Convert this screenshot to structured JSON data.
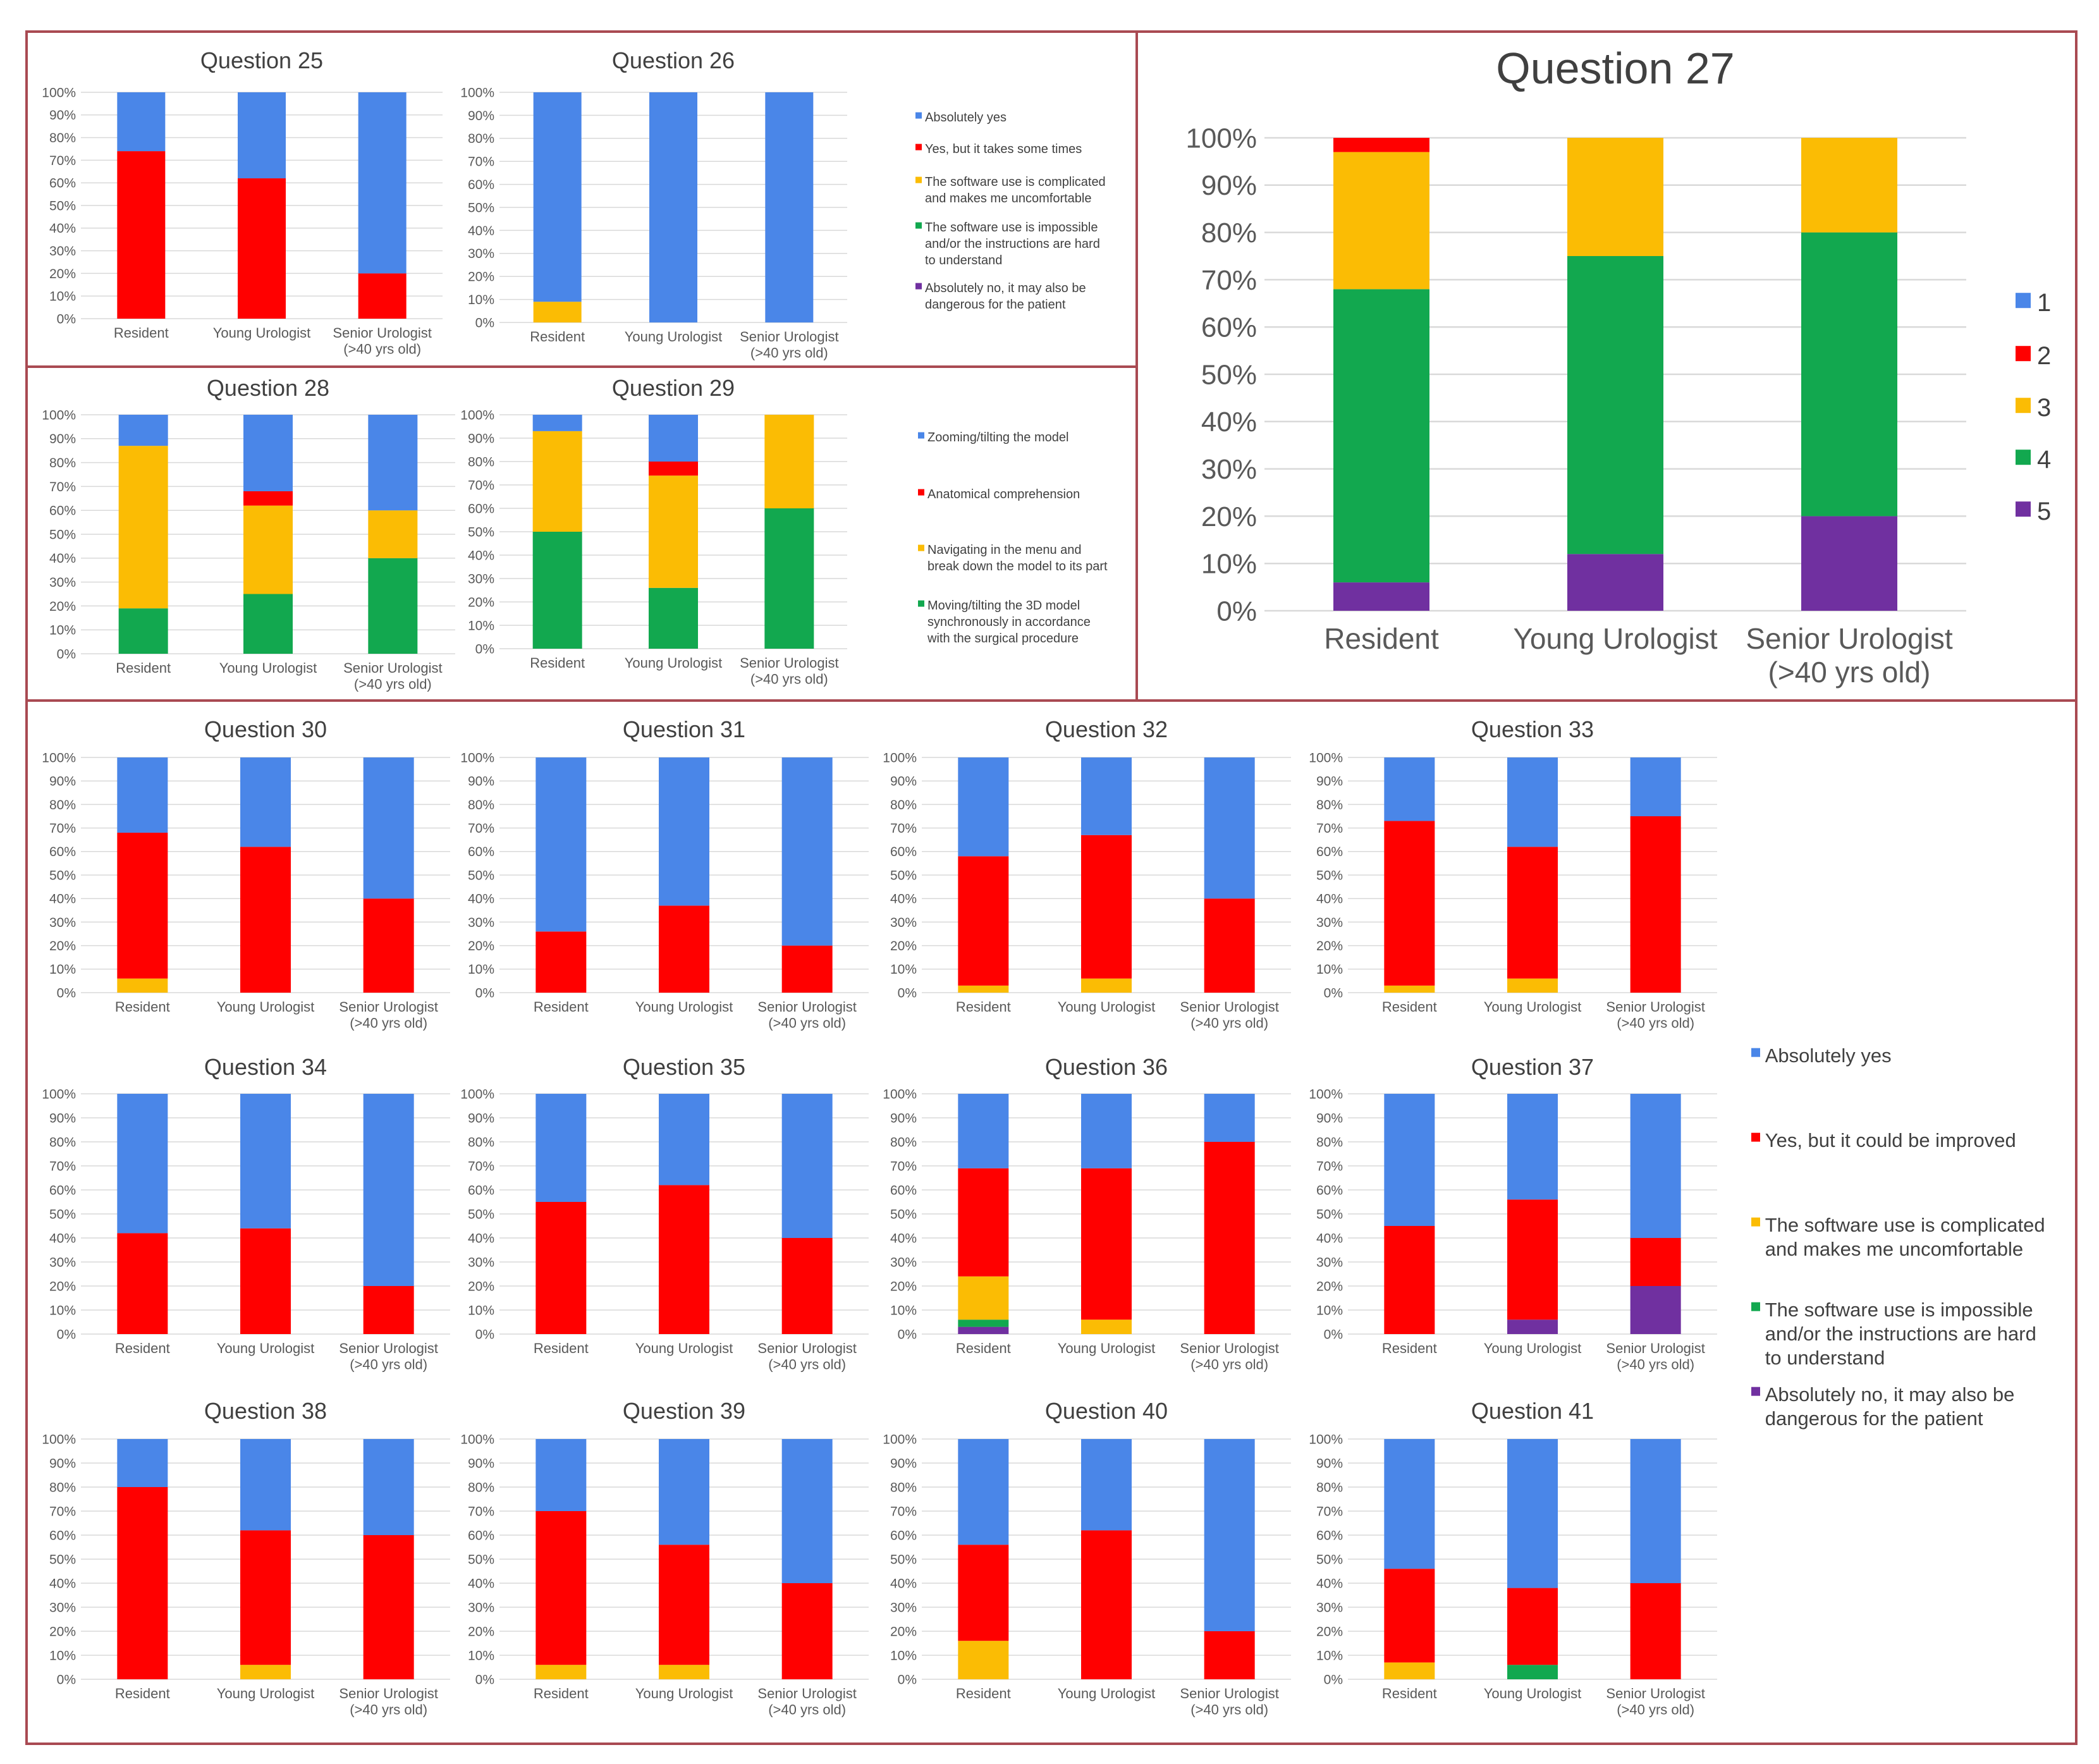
{
  "colors": {
    "c1": "#4a86e8",
    "c2": "#ff0000",
    "c3": "#fbbc04",
    "c4": "#12a84f",
    "c5": "#7030a0",
    "frame": "#a94a52",
    "grid": "#d9d9d9",
    "axis_text": "#595959"
  },
  "y_ticks": [
    "0%",
    "10%",
    "20%",
    "30%",
    "40%",
    "50%",
    "60%",
    "70%",
    "80%",
    "90%",
    "100%"
  ],
  "categories": [
    "Resident",
    "Young Urologist",
    "Senior Urologist"
  ],
  "category_sub": "(>40 yrs old)",
  "legends": {
    "q25_26": [
      {
        "color": "c1",
        "lines": [
          "Absolutely yes"
        ]
      },
      {
        "color": "c2",
        "lines": [
          "Yes, but it takes some times"
        ]
      },
      {
        "color": "c3",
        "lines": [
          "The software use is complicated",
          "and makes me uncomfortable"
        ]
      },
      {
        "color": "c4",
        "lines": [
          "The software use is impossible",
          "and/or the instructions are hard",
          "to understand"
        ]
      },
      {
        "color": "c5",
        "lines": [
          "Absolutely no, it may also be",
          "dangerous for the patient"
        ]
      }
    ],
    "q28_29": [
      {
        "color": "c1",
        "lines": [
          "Zooming/tilting the model"
        ]
      },
      {
        "color": "c2",
        "lines": [
          "Anatomical comprehension"
        ]
      },
      {
        "color": "c3",
        "lines": [
          "Navigating in the menu and",
          "break down the model to its part"
        ]
      },
      {
        "color": "c4",
        "lines": [
          "Moving/tilting the 3D model",
          "synchronously in accordance",
          "with the surgical procedure"
        ]
      }
    ],
    "q27": [
      {
        "color": "c1",
        "lines": [
          "1"
        ]
      },
      {
        "color": "c2",
        "lines": [
          "2"
        ]
      },
      {
        "color": "c3",
        "lines": [
          "3"
        ]
      },
      {
        "color": "c4",
        "lines": [
          "4"
        ]
      },
      {
        "color": "c5",
        "lines": [
          "5"
        ]
      }
    ],
    "q30_41": [
      {
        "color": "c1",
        "lines": [
          "Absolutely yes"
        ]
      },
      {
        "color": "c2",
        "lines": [
          "Yes, but it could be improved"
        ]
      },
      {
        "color": "c3",
        "lines": [
          "The software use is complicated",
          "and makes me uncomfortable"
        ]
      },
      {
        "color": "c4",
        "lines": [
          "The software use is impossible",
          "and/or the instructions are hard",
          "to understand"
        ]
      },
      {
        "color": "c5",
        "lines": [
          "Absolutely no, it may also be",
          "dangerous for the patient"
        ]
      }
    ]
  },
  "chart_data": [
    {
      "type": "bar",
      "stacked": true,
      "title": "Question 25",
      "ylim": [
        0,
        100
      ],
      "series_order": [
        "c5",
        "c4",
        "c3",
        "c2",
        "c1"
      ],
      "bars": [
        {
          "category": "Resident",
          "values": {
            "c2": 74,
            "c1": 26
          }
        },
        {
          "category": "Young Urologist",
          "values": {
            "c2": 62,
            "c1": 38
          }
        },
        {
          "category": "Senior Urologist (>40 yrs old)",
          "values": {
            "c2": 20,
            "c1": 80
          }
        }
      ]
    },
    {
      "type": "bar",
      "stacked": true,
      "title": "Question 26",
      "ylim": [
        0,
        100
      ],
      "series_order": [
        "c5",
        "c4",
        "c3",
        "c2",
        "c1"
      ],
      "bars": [
        {
          "category": "Resident",
          "values": {
            "c3": 9,
            "c1": 91
          }
        },
        {
          "category": "Young Urologist",
          "values": {
            "c1": 100
          }
        },
        {
          "category": "Senior Urologist (>40 yrs old)",
          "values": {
            "c1": 100
          }
        }
      ]
    },
    {
      "type": "bar",
      "stacked": true,
      "title": "Question 27",
      "ylim": [
        0,
        100
      ],
      "series_order": [
        "c5",
        "c4",
        "c3",
        "c2",
        "c1"
      ],
      "bars": [
        {
          "category": "Resident",
          "values": {
            "c5": 6,
            "c4": 62,
            "c3": 29,
            "c2": 3
          }
        },
        {
          "category": "Young Urologist",
          "values": {
            "c5": 12,
            "c4": 63,
            "c3": 25
          }
        },
        {
          "category": "Senior Urologist (>40 yrs old)",
          "values": {
            "c5": 20,
            "c4": 60,
            "c3": 20
          }
        }
      ]
    },
    {
      "type": "bar",
      "stacked": true,
      "title": "Question 28",
      "ylim": [
        0,
        100
      ],
      "series_order": [
        "c5",
        "c4",
        "c3",
        "c2",
        "c1"
      ],
      "bars": [
        {
          "category": "Resident",
          "values": {
            "c4": 19,
            "c3": 68,
            "c1": 13
          }
        },
        {
          "category": "Young Urologist",
          "values": {
            "c4": 25,
            "c3": 37,
            "c2": 6,
            "c1": 32
          }
        },
        {
          "category": "Senior Urologist (>40 yrs old)",
          "values": {
            "c4": 40,
            "c3": 20,
            "c1": 40
          }
        }
      ]
    },
    {
      "type": "bar",
      "stacked": true,
      "title": "Question 29",
      "ylim": [
        0,
        100
      ],
      "series_order": [
        "c5",
        "c4",
        "c3",
        "c2",
        "c1"
      ],
      "bars": [
        {
          "category": "Resident",
          "values": {
            "c4": 50,
            "c3": 43,
            "c1": 7
          }
        },
        {
          "category": "Young Urologist",
          "values": {
            "c4": 26,
            "c3": 48,
            "c2": 6,
            "c1": 20
          }
        },
        {
          "category": "Senior Urologist (>40 yrs old)",
          "values": {
            "c4": 60,
            "c3": 40
          }
        }
      ]
    },
    {
      "type": "bar",
      "stacked": true,
      "title": "Question 30",
      "ylim": [
        0,
        100
      ],
      "series_order": [
        "c5",
        "c4",
        "c3",
        "c2",
        "c1"
      ],
      "bars": [
        {
          "category": "Resident",
          "values": {
            "c3": 6,
            "c2": 62,
            "c1": 32
          }
        },
        {
          "category": "Young Urologist",
          "values": {
            "c2": 62,
            "c1": 38
          }
        },
        {
          "category": "Senior Urologist (>40 yrs old)",
          "values": {
            "c2": 40,
            "c1": 60
          }
        }
      ]
    },
    {
      "type": "bar",
      "stacked": true,
      "title": "Question 31",
      "ylim": [
        0,
        100
      ],
      "series_order": [
        "c5",
        "c4",
        "c3",
        "c2",
        "c1"
      ],
      "bars": [
        {
          "category": "Resident",
          "values": {
            "c2": 26,
            "c1": 74
          }
        },
        {
          "category": "Young Urologist",
          "values": {
            "c2": 37,
            "c1": 63
          }
        },
        {
          "category": "Senior Urologist (>40 yrs old)",
          "values": {
            "c2": 20,
            "c1": 80
          }
        }
      ]
    },
    {
      "type": "bar",
      "stacked": true,
      "title": "Question 32",
      "ylim": [
        0,
        100
      ],
      "series_order": [
        "c5",
        "c4",
        "c3",
        "c2",
        "c1"
      ],
      "bars": [
        {
          "category": "Resident",
          "values": {
            "c3": 3,
            "c2": 55,
            "c1": 42
          }
        },
        {
          "category": "Young Urologist",
          "values": {
            "c3": 6,
            "c2": 61,
            "c1": 33
          }
        },
        {
          "category": "Senior Urologist (>40 yrs old)",
          "values": {
            "c2": 40,
            "c1": 60
          }
        }
      ]
    },
    {
      "type": "bar",
      "stacked": true,
      "title": "Question 33",
      "ylim": [
        0,
        100
      ],
      "series_order": [
        "c5",
        "c4",
        "c3",
        "c2",
        "c1"
      ],
      "bars": [
        {
          "category": "Resident",
          "values": {
            "c3": 3,
            "c2": 70,
            "c1": 27
          }
        },
        {
          "category": "Young Urologist",
          "values": {
            "c3": 6,
            "c2": 56,
            "c1": 38
          }
        },
        {
          "category": "Senior Urologist (>40 yrs old)",
          "values": {
            "c2": 75,
            "c1": 25
          }
        }
      ]
    },
    {
      "type": "bar",
      "stacked": true,
      "title": "Question 34",
      "ylim": [
        0,
        100
      ],
      "series_order": [
        "c5",
        "c4",
        "c3",
        "c2",
        "c1"
      ],
      "bars": [
        {
          "category": "Resident",
          "values": {
            "c2": 42,
            "c1": 58
          }
        },
        {
          "category": "Young Urologist",
          "values": {
            "c2": 44,
            "c1": 56
          }
        },
        {
          "category": "Senior Urologist (>40 yrs old)",
          "values": {
            "c2": 20,
            "c1": 80
          }
        }
      ]
    },
    {
      "type": "bar",
      "stacked": true,
      "title": "Question 35",
      "ylim": [
        0,
        100
      ],
      "series_order": [
        "c5",
        "c4",
        "c3",
        "c2",
        "c1"
      ],
      "bars": [
        {
          "category": "Resident",
          "values": {
            "c2": 55,
            "c1": 45
          }
        },
        {
          "category": "Young Urologist",
          "values": {
            "c2": 62,
            "c1": 38
          }
        },
        {
          "category": "Senior Urologist (>40 yrs old)",
          "values": {
            "c2": 40,
            "c1": 60
          }
        }
      ]
    },
    {
      "type": "bar",
      "stacked": true,
      "title": "Question 36",
      "ylim": [
        0,
        100
      ],
      "series_order": [
        "c5",
        "c4",
        "c3",
        "c2",
        "c1"
      ],
      "bars": [
        {
          "category": "Resident",
          "values": {
            "c5": 3,
            "c4": 3,
            "c3": 18,
            "c2": 45,
            "c1": 31
          }
        },
        {
          "category": "Young Urologist",
          "values": {
            "c3": 6,
            "c2": 63,
            "c1": 31
          }
        },
        {
          "category": "Senior Urologist (>40 yrs old)",
          "values": {
            "c2": 80,
            "c1": 20
          }
        }
      ]
    },
    {
      "type": "bar",
      "stacked": true,
      "title": "Question 37",
      "ylim": [
        0,
        100
      ],
      "series_order": [
        "c5",
        "c4",
        "c3",
        "c2",
        "c1"
      ],
      "bars": [
        {
          "category": "Resident",
          "values": {
            "c2": 45,
            "c1": 55
          }
        },
        {
          "category": "Young Urologist",
          "values": {
            "c5": 6,
            "c2": 50,
            "c1": 44
          }
        },
        {
          "category": "Senior Urologist (>40 yrs old)",
          "values": {
            "c5": 20,
            "c2": 20,
            "c1": 60
          }
        }
      ]
    },
    {
      "type": "bar",
      "stacked": true,
      "title": "Question 38",
      "ylim": [
        0,
        100
      ],
      "series_order": [
        "c5",
        "c4",
        "c3",
        "c2",
        "c1"
      ],
      "bars": [
        {
          "category": "Resident",
          "values": {
            "c2": 80,
            "c1": 20
          }
        },
        {
          "category": "Young Urologist",
          "values": {
            "c3": 6,
            "c2": 56,
            "c1": 38
          }
        },
        {
          "category": "Senior Urologist (>40 yrs old)",
          "values": {
            "c2": 60,
            "c1": 40
          }
        }
      ]
    },
    {
      "type": "bar",
      "stacked": true,
      "title": "Question 39",
      "ylim": [
        0,
        100
      ],
      "series_order": [
        "c5",
        "c4",
        "c3",
        "c2",
        "c1"
      ],
      "bars": [
        {
          "category": "Resident",
          "values": {
            "c3": 6,
            "c2": 64,
            "c1": 30
          }
        },
        {
          "category": "Young Urologist",
          "values": {
            "c3": 6,
            "c2": 50,
            "c1": 44
          }
        },
        {
          "category": "Senior Urologist (>40 yrs old)",
          "values": {
            "c2": 40,
            "c1": 60
          }
        }
      ]
    },
    {
      "type": "bar",
      "stacked": true,
      "title": "Question 40",
      "ylim": [
        0,
        100
      ],
      "series_order": [
        "c5",
        "c4",
        "c3",
        "c2",
        "c1"
      ],
      "bars": [
        {
          "category": "Resident",
          "values": {
            "c3": 16,
            "c2": 40,
            "c1": 44
          }
        },
        {
          "category": "Young Urologist",
          "values": {
            "c2": 62,
            "c1": 38
          }
        },
        {
          "category": "Senior Urologist (>40 yrs old)",
          "values": {
            "c2": 20,
            "c1": 80
          }
        }
      ]
    },
    {
      "type": "bar",
      "stacked": true,
      "title": "Question 41",
      "ylim": [
        0,
        100
      ],
      "series_order": [
        "c5",
        "c4",
        "c3",
        "c2",
        "c1"
      ],
      "bars": [
        {
          "category": "Resident",
          "values": {
            "c3": 7,
            "c2": 39,
            "c1": 54
          }
        },
        {
          "category": "Young Urologist",
          "values": {
            "c4": 6,
            "c2": 32,
            "c1": 62
          }
        },
        {
          "category": "Senior Urologist (>40 yrs old)",
          "values": {
            "c2": 40,
            "c1": 60
          }
        }
      ]
    }
  ]
}
